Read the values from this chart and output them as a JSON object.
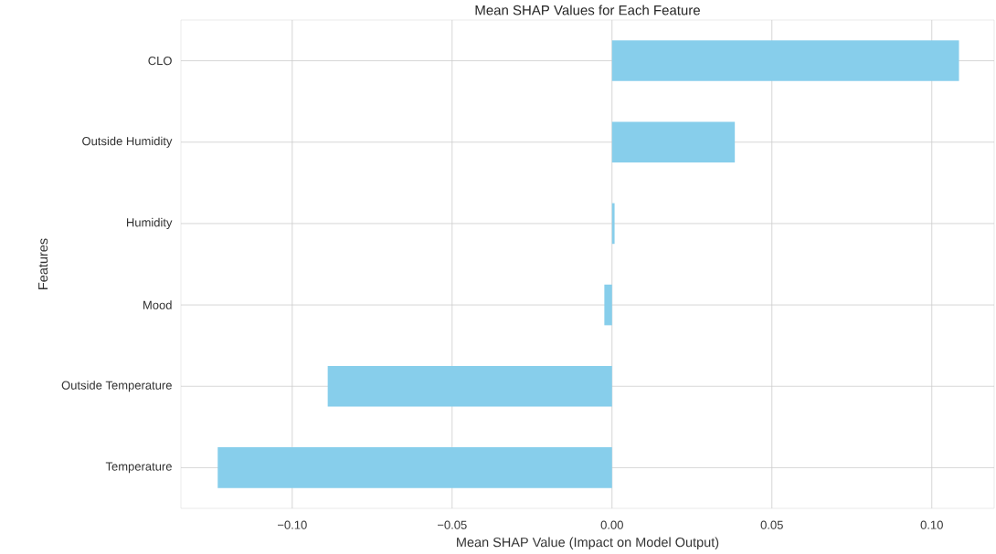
{
  "chart_data": {
    "type": "bar",
    "orientation": "horizontal",
    "title": "Mean SHAP Values for Each Feature",
    "xlabel": "Mean SHAP Value (Impact on Model Output)",
    "ylabel": "Features",
    "categories": [
      "CLO",
      "Outside Humidity",
      "Humidity",
      "Mood",
      "Outside Temperature",
      "Temperature"
    ],
    "values": [
      0.1085,
      0.0384,
      0.0008,
      -0.0024,
      -0.0889,
      -0.1233
    ],
    "color": "#87ceeb",
    "xlim": [
      -0.1348,
      0.1195
    ],
    "xticks": [
      {
        "value": -0.1,
        "label": "−0.10"
      },
      {
        "value": -0.05,
        "label": "−0.05"
      },
      {
        "value": 0,
        "label": "0.00"
      },
      {
        "value": 0.05,
        "label": "0.05"
      },
      {
        "value": 0.1,
        "label": "0.10"
      }
    ],
    "grid": true
  }
}
